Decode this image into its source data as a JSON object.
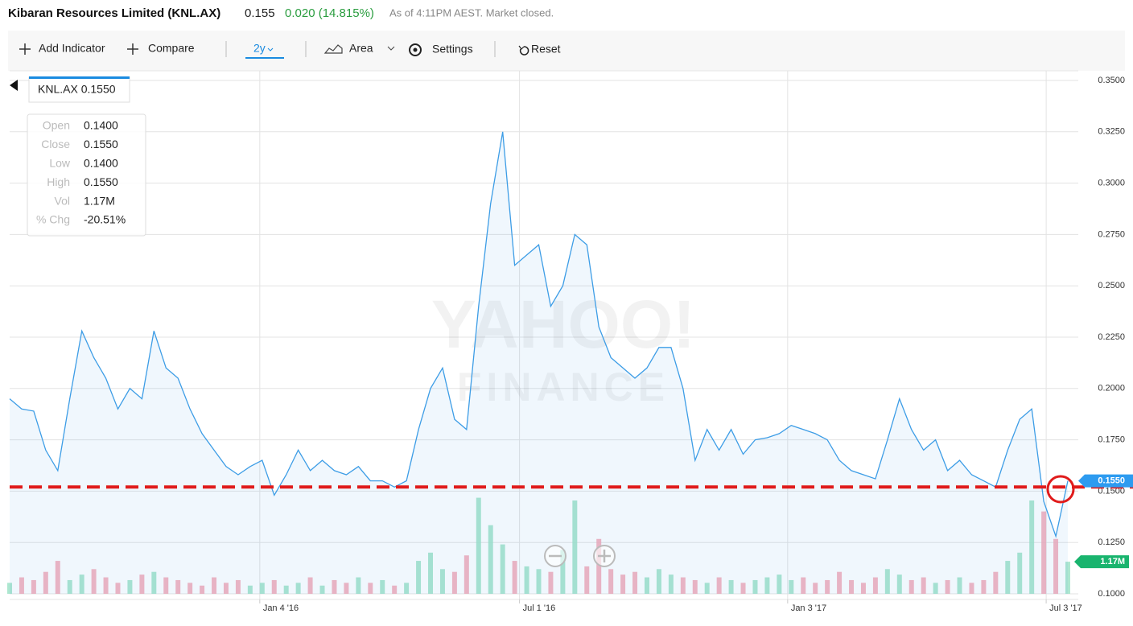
{
  "header": {
    "title": "Kibaran Resources Limited (KNL.AX)",
    "price": "0.155",
    "change": "0.020 (14.815%)",
    "status": "As of 4:11PM AEST. Market closed."
  },
  "toolbar": {
    "add_indicator": "Add Indicator",
    "compare": "Compare",
    "range": "2y",
    "chart_type": "Area",
    "settings": "Settings",
    "reset": "Reset"
  },
  "tooltip": {
    "symbol": "KNL.AX 0.1550",
    "rows": [
      [
        "Open",
        "0.1400"
      ],
      [
        "Close",
        "0.1550"
      ],
      [
        "Low",
        "0.1400"
      ],
      [
        "High",
        "0.1550"
      ],
      [
        "Vol",
        "1.17M"
      ],
      [
        "% Chg",
        "-20.51%"
      ]
    ]
  },
  "chart_data": {
    "type": "area",
    "watermark": [
      "YAHOO!",
      "FINANCE"
    ],
    "color": "#3d9de6",
    "xlim": [
      0,
      88
    ],
    "xticks": [
      {
        "value": 20.8,
        "label": "Jan 4 '16"
      },
      {
        "value": 42.4,
        "label": "Jul 1 '16"
      },
      {
        "value": 64.7,
        "label": "Jan 3 '17"
      },
      {
        "value": 86.2,
        "label": "Jul 3 '17"
      }
    ],
    "ylim": [
      0.1,
      0.35
    ],
    "yticks": [
      {
        "value": 0.1,
        "label": "0.1000"
      },
      {
        "value": 0.125,
        "label": "0.1250"
      },
      {
        "value": 0.15,
        "label": "0.1500"
      },
      {
        "value": 0.175,
        "label": "0.1750"
      },
      {
        "value": 0.2,
        "label": "0.2000"
      },
      {
        "value": 0.225,
        "label": "0.2250"
      },
      {
        "value": 0.25,
        "label": "0.2500"
      },
      {
        "value": 0.275,
        "label": "0.2750"
      },
      {
        "value": 0.3,
        "label": "0.3000"
      },
      {
        "value": 0.325,
        "label": "0.3250"
      },
      {
        "value": 0.35,
        "label": "0.3500"
      }
    ],
    "grid": true,
    "values": [
      0.195,
      0.19,
      0.189,
      0.17,
      0.16,
      0.195,
      0.228,
      0.215,
      0.205,
      0.19,
      0.2,
      0.195,
      0.228,
      0.21,
      0.205,
      0.19,
      0.178,
      0.17,
      0.162,
      0.158,
      0.162,
      0.165,
      0.148,
      0.158,
      0.17,
      0.16,
      0.165,
      0.16,
      0.158,
      0.162,
      0.155,
      0.155,
      0.152,
      0.155,
      0.18,
      0.2,
      0.21,
      0.185,
      0.18,
      0.24,
      0.29,
      0.325,
      0.26,
      0.265,
      0.27,
      0.24,
      0.25,
      0.275,
      0.27,
      0.23,
      0.215,
      0.21,
      0.205,
      0.21,
      0.22,
      0.22,
      0.2,
      0.165,
      0.18,
      0.17,
      0.18,
      0.168,
      0.175,
      0.176,
      0.178,
      0.182,
      0.18,
      0.178,
      0.175,
      0.165,
      0.16,
      0.158,
      0.156,
      0.175,
      0.195,
      0.18,
      0.17,
      0.175,
      0.16,
      0.165,
      0.158,
      0.155,
      0.152,
      0.17,
      0.185,
      0.19,
      0.145,
      0.128,
      0.155
    ],
    "volume": {
      "vlim": [
        0,
        18.7
      ],
      "up_color": "#9fe3c8",
      "down_color": "#f5a9b7",
      "values": [
        0.4,
        0.6,
        0.5,
        0.8,
        1.2,
        0.5,
        0.7,
        0.9,
        0.6,
        0.4,
        0.5,
        0.7,
        0.8,
        0.6,
        0.5,
        0.4,
        0.3,
        0.6,
        0.4,
        0.5,
        0.3,
        0.4,
        0.5,
        0.3,
        0.4,
        0.6,
        0.3,
        0.5,
        0.4,
        0.6,
        0.4,
        0.5,
        0.3,
        0.4,
        1.2,
        1.5,
        0.9,
        0.8,
        1.4,
        3.5,
        2.5,
        1.8,
        1.2,
        1.0,
        0.9,
        0.8,
        1.6,
        3.4,
        1.0,
        2.0,
        0.9,
        0.7,
        0.8,
        0.6,
        0.9,
        0.7,
        0.6,
        0.5,
        0.4,
        0.6,
        0.5,
        0.4,
        0.5,
        0.6,
        0.7,
        0.5,
        0.6,
        0.4,
        0.5,
        0.8,
        0.5,
        0.4,
        0.6,
        0.9,
        0.7,
        0.5,
        0.6,
        0.4,
        0.5,
        0.6,
        0.4,
        0.5,
        0.8,
        1.2,
        1.5,
        3.4,
        3.0,
        2.0,
        1.17
      ]
    },
    "price_tag": {
      "value": 0.155,
      "label": "0.1550",
      "color": "#2d9bf0"
    },
    "volume_tag": {
      "value": 1.17,
      "label": "1.17M",
      "color": "#19b46e"
    },
    "annotation_line": {
      "value": 0.152,
      "color": "#e01b1b"
    }
  }
}
